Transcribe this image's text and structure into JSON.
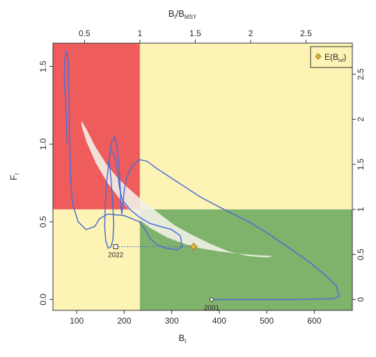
{
  "chart_data": {
    "type": "line",
    "title": "",
    "axes": {
      "bottom": {
        "label": "B",
        "label_sub": "t",
        "range": [
          50,
          680
        ],
        "ticks": [
          100,
          200,
          300,
          400,
          500,
          600
        ]
      },
      "left": {
        "label": "F",
        "label_sub": "t",
        "range": [
          -0.07,
          1.65
        ],
        "ticks": [
          0.0,
          0.5,
          1.0,
          1.5
        ]
      },
      "top": {
        "label": "B",
        "label_sub": "t",
        "label_mid": "/B",
        "label_sub2": "MSY",
        "ticks": [
          0.5,
          1,
          1.5,
          2,
          2.5
        ],
        "bmsy_in_b_units": 233
      },
      "right": {
        "label": "",
        "ticks": [
          0,
          0.5,
          1,
          1.5,
          2,
          2.5
        ],
        "fmsy_in_f_units": 0.58
      }
    },
    "quadrants": {
      "b_msy": 233,
      "f_msy": 0.58,
      "colors": {
        "overfished_overfishing": "#ee5c5c",
        "other": "#fcf3b4",
        "healthy": "#7fb36b"
      }
    },
    "confidence_ellipse": {
      "color": "#f2efe6",
      "outline": [
        [
          110,
          1.15
        ],
        [
          120,
          1.1
        ],
        [
          140,
          0.98
        ],
        [
          165,
          0.86
        ],
        [
          190,
          0.77
        ],
        [
          215,
          0.7
        ],
        [
          245,
          0.62
        ],
        [
          275,
          0.55
        ],
        [
          305,
          0.48
        ],
        [
          340,
          0.42
        ],
        [
          380,
          0.36
        ],
        [
          420,
          0.31
        ],
        [
          460,
          0.28
        ],
        [
          500,
          0.27
        ],
        [
          515,
          0.28
        ],
        [
          480,
          0.285
        ],
        [
          440,
          0.295
        ],
        [
          400,
          0.31
        ],
        [
          360,
          0.33
        ],
        [
          325,
          0.36
        ],
        [
          290,
          0.4
        ],
        [
          255,
          0.46
        ],
        [
          225,
          0.53
        ],
        [
          195,
          0.63
        ],
        [
          165,
          0.75
        ],
        [
          140,
          0.88
        ],
        [
          120,
          1.02
        ],
        [
          110,
          1.12
        ]
      ]
    },
    "series": [
      {
        "color": "#4a6fd8",
        "points": [
          [
            384,
            0.0
          ],
          [
            450,
            0.0
          ],
          [
            560,
            0.0
          ],
          [
            640,
            0.005
          ],
          [
            652,
            0.02
          ],
          [
            646,
            0.09
          ],
          [
            622,
            0.16
          ],
          [
            590,
            0.24
          ],
          [
            548,
            0.33
          ],
          [
            505,
            0.42
          ],
          [
            462,
            0.5
          ],
          [
            410,
            0.58
          ],
          [
            360,
            0.66
          ],
          [
            310,
            0.76
          ],
          [
            270,
            0.84
          ],
          [
            248,
            0.89
          ],
          [
            232,
            0.9
          ],
          [
            220,
            0.87
          ],
          [
            210,
            0.82
          ],
          [
            204,
            0.77
          ],
          [
            200,
            0.7
          ],
          [
            197,
            0.6
          ],
          [
            195,
            0.55
          ],
          [
            193,
            0.6
          ],
          [
            192,
            0.7
          ],
          [
            189,
            0.86
          ],
          [
            185,
            0.98
          ],
          [
            180,
            1.05
          ],
          [
            174,
            1.02
          ],
          [
            168,
            0.9
          ],
          [
            163,
            0.75
          ],
          [
            160,
            0.6
          ],
          [
            159,
            0.47
          ],
          [
            161,
            0.38
          ],
          [
            166,
            0.33
          ],
          [
            172,
            0.34
          ],
          [
            176,
            0.38
          ],
          [
            178,
            0.48
          ],
          [
            176,
            0.62
          ],
          [
            172,
            0.78
          ],
          [
            168,
            0.9
          ],
          [
            170,
            0.95
          ],
          [
            176,
            0.95
          ],
          [
            182,
            0.9
          ],
          [
            186,
            0.82
          ],
          [
            190,
            0.72
          ],
          [
            196,
            0.64
          ],
          [
            212,
            0.58
          ],
          [
            232,
            0.53
          ],
          [
            254,
            0.49
          ],
          [
            276,
            0.47
          ],
          [
            300,
            0.45
          ],
          [
            318,
            0.41
          ],
          [
            322,
            0.34
          ],
          [
            312,
            0.32
          ],
          [
            288,
            0.33
          ],
          [
            270,
            0.35
          ],
          [
            255,
            0.39
          ],
          [
            244,
            0.45
          ],
          [
            232,
            0.5
          ],
          [
            200,
            0.54
          ],
          [
            165,
            0.55
          ],
          [
            148,
            0.52
          ],
          [
            138,
            0.47
          ],
          [
            120,
            0.45
          ],
          [
            103,
            0.5
          ],
          [
            91,
            0.62
          ],
          [
            87,
            0.8
          ],
          [
            85,
            1.05
          ],
          [
            84,
            1.3
          ],
          [
            82,
            1.55
          ],
          [
            79,
            1.6
          ],
          [
            75,
            1.55
          ],
          [
            74,
            1.4
          ],
          [
            78,
            1.2
          ],
          [
            80,
            1.0
          ]
        ]
      },
      {
        "color": "#4a6fd8",
        "dashed": true,
        "points": [
          [
            182,
            0.34
          ],
          [
            346,
            0.34
          ]
        ]
      }
    ],
    "markers": [
      {
        "kind": "start",
        "x": 384,
        "y": 0.0,
        "label": "2001"
      },
      {
        "kind": "end",
        "x": 182,
        "y": 0.34,
        "label": "2022"
      },
      {
        "kind": "expected",
        "x": 346,
        "y": 0.34,
        "label": ""
      }
    ],
    "legend": {
      "position": "top-right",
      "entries": [
        {
          "symbol": "diamond",
          "color": "#d8b63c",
          "text": "E(B",
          "text_sub": "inf",
          "text_tail": ")"
        }
      ]
    }
  }
}
